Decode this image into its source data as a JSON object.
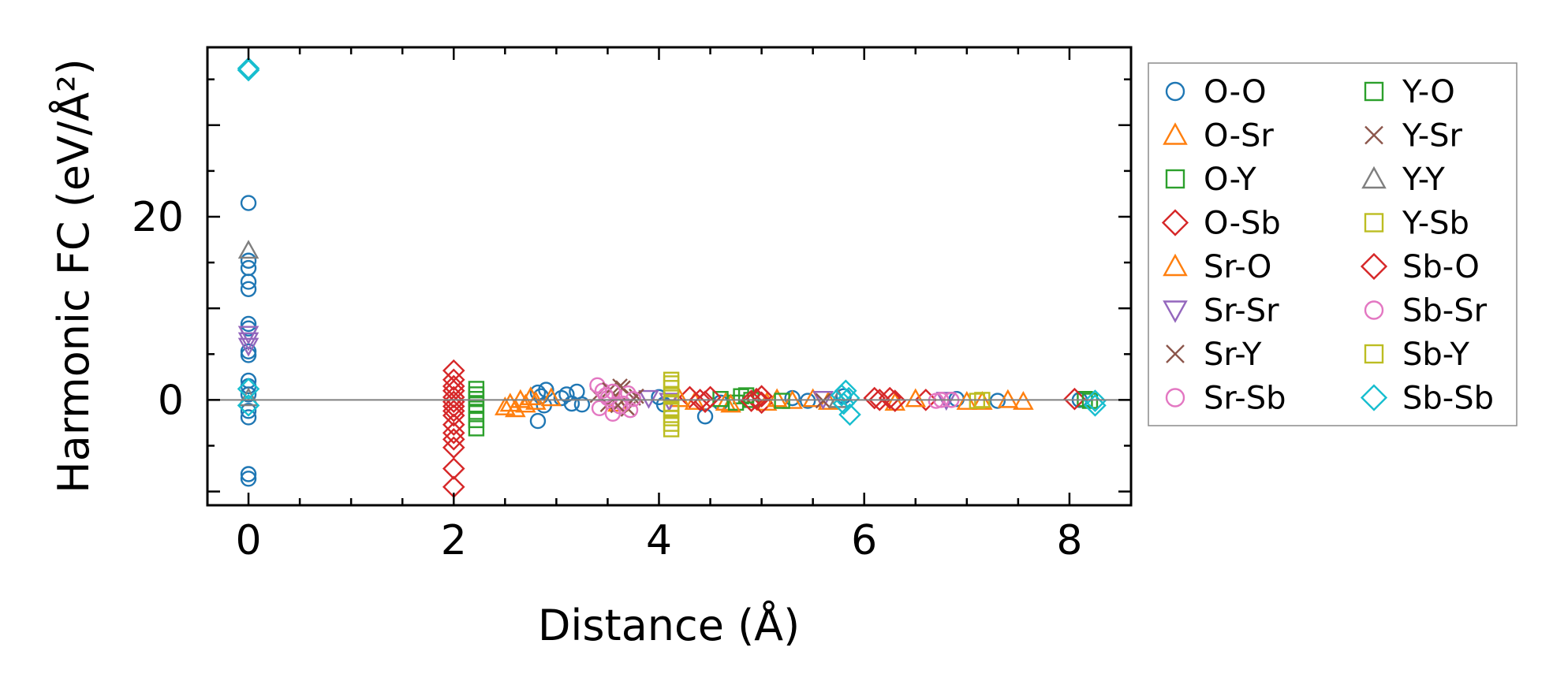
{
  "chart_data": {
    "type": "scatter",
    "title": "",
    "xlabel": "Distance (Å)",
    "ylabel": "Harmonic FC (eV/Å²)",
    "xlim": [
      -0.4,
      8.6
    ],
    "ylim": [
      -11.5,
      38.5
    ],
    "xticks": [
      0,
      2,
      4,
      6,
      8
    ],
    "xtick_labels": [
      "0",
      "2",
      "4",
      "6",
      "8"
    ],
    "yticks": [
      0,
      20
    ],
    "ytick_labels": [
      "0",
      "20"
    ],
    "reference_line_y": 0,
    "legend_position": "outside-right",
    "series": [
      {
        "name": "O-O",
        "marker": "circle",
        "color": "#1f77b4",
        "points": [
          [
            0,
            21.5
          ],
          [
            0,
            15.2
          ],
          [
            0,
            14.4
          ],
          [
            0,
            12.9
          ],
          [
            0,
            12.1
          ],
          [
            0,
            8.3
          ],
          [
            0,
            7.8
          ],
          [
            0,
            5.3
          ],
          [
            0,
            4.9
          ],
          [
            0,
            2.1
          ],
          [
            0,
            1.5
          ],
          [
            0,
            0.6
          ],
          [
            0,
            -1.2
          ],
          [
            0,
            -1.9
          ],
          [
            0,
            -8.1
          ],
          [
            0,
            -8.6
          ],
          [
            2.82,
            0.8
          ],
          [
            2.85,
            0.4
          ],
          [
            2.88,
            -0.6
          ],
          [
            2.82,
            -2.3
          ],
          [
            2.9,
            1.1
          ],
          [
            3.1,
            0.6
          ],
          [
            3.15,
            -0.4
          ],
          [
            3.2,
            0.9
          ],
          [
            3.25,
            -0.5
          ],
          [
            3.05,
            0.2
          ],
          [
            4.0,
            0.3
          ],
          [
            4.05,
            -0.5
          ],
          [
            4.45,
            -1.8
          ],
          [
            4.6,
            -0.3
          ],
          [
            5.3,
            0.2
          ],
          [
            5.45,
            -0.1
          ],
          [
            5.8,
            0.4
          ],
          [
            6.9,
            0.1
          ],
          [
            7.3,
            -0.1
          ],
          [
            8.1,
            0.0
          ]
        ]
      },
      {
        "name": "O-Sr",
        "marker": "triangle-up",
        "color": "#ff7f0e",
        "points": [
          [
            2.55,
            -0.4
          ],
          [
            2.6,
            -1.0
          ],
          [
            2.7,
            -0.5
          ],
          [
            2.75,
            0.3
          ],
          [
            2.95,
            0.2
          ],
          [
            3.6,
            -0.4
          ],
          [
            4.35,
            -0.2
          ],
          [
            4.65,
            -0.3
          ],
          [
            5.05,
            -0.3
          ],
          [
            5.3,
            -0.1
          ],
          [
            5.5,
            0.1
          ],
          [
            6.3,
            -0.3
          ],
          [
            7.0,
            -0.2
          ],
          [
            7.4,
            0.0
          ],
          [
            7.55,
            -0.2
          ]
        ]
      },
      {
        "name": "O-Y",
        "marker": "square",
        "color": "#2ca02c",
        "points": [
          [
            2.22,
            1.2
          ],
          [
            2.22,
            0.6
          ],
          [
            2.22,
            0.1
          ],
          [
            2.22,
            -0.5
          ],
          [
            2.22,
            -1.3
          ],
          [
            2.22,
            -2.2
          ],
          [
            2.22,
            -3.1
          ],
          [
            4.8,
            0.4
          ],
          [
            4.9,
            0.0
          ],
          [
            4.75,
            -0.3
          ],
          [
            8.15,
            0.1
          ]
        ]
      },
      {
        "name": "O-Sb",
        "marker": "diamond",
        "color": "#d62728",
        "points": [
          [
            2.0,
            3.2
          ],
          [
            2.0,
            2.2
          ],
          [
            2.0,
            1.0
          ],
          [
            2.0,
            0.3
          ],
          [
            2.0,
            -0.7
          ],
          [
            2.0,
            -1.7
          ],
          [
            2.0,
            -2.7
          ],
          [
            2.0,
            -3.6
          ],
          [
            2.0,
            -5.2
          ],
          [
            2.0,
            -7.5
          ],
          [
            2.0,
            -9.5
          ],
          [
            4.3,
            0.3
          ],
          [
            4.45,
            -0.2
          ],
          [
            4.95,
            0.1
          ],
          [
            5.0,
            -0.3
          ],
          [
            6.1,
            0.2
          ],
          [
            6.3,
            -0.1
          ],
          [
            6.6,
            0.0
          ],
          [
            8.05,
            0.1
          ]
        ]
      },
      {
        "name": "Sr-O",
        "marker": "triangle-up",
        "color": "#ff7f0e",
        "points": [
          [
            2.5,
            -0.8
          ],
          [
            2.65,
            0.0
          ],
          [
            2.8,
            -0.2
          ],
          [
            4.2,
            0.1
          ],
          [
            4.7,
            -0.5
          ],
          [
            5.15,
            0.1
          ],
          [
            5.65,
            -0.2
          ],
          [
            6.5,
            0.1
          ],
          [
            7.15,
            -0.2
          ]
        ]
      },
      {
        "name": "Sr-Sr",
        "marker": "triangle-down",
        "color": "#9467bd",
        "points": [
          [
            0,
            7.2
          ],
          [
            0,
            6.5
          ],
          [
            0,
            5.9
          ],
          [
            3.9,
            0.2
          ],
          [
            4.1,
            -0.1
          ],
          [
            5.6,
            0.1
          ],
          [
            6.8,
            0.0
          ]
        ]
      },
      {
        "name": "Sr-Y",
        "marker": "x",
        "color": "#8c564b",
        "points": [
          [
            3.4,
            0.5
          ],
          [
            3.5,
            -0.5
          ],
          [
            3.65,
            1.3
          ],
          [
            3.7,
            -1.0
          ],
          [
            3.75,
            0.2
          ],
          [
            5.6,
            -0.1
          ]
        ]
      },
      {
        "name": "Sr-Sb",
        "marker": "circle",
        "color": "#e377c2",
        "points": [
          [
            3.4,
            1.6
          ],
          [
            3.45,
            1.0
          ],
          [
            3.5,
            0.2
          ],
          [
            3.42,
            -0.9
          ],
          [
            3.55,
            -1.5
          ],
          [
            3.65,
            -0.4
          ],
          [
            3.7,
            0.7
          ],
          [
            3.72,
            -1.1
          ],
          [
            6.7,
            -0.1
          ],
          [
            6.85,
            0.0
          ]
        ]
      },
      {
        "name": "Y-O",
        "marker": "square",
        "color": "#2ca02c",
        "points": [
          [
            4.6,
            0.1
          ],
          [
            4.85,
            0.5
          ],
          [
            5.2,
            -0.1
          ],
          [
            8.2,
            -0.1
          ]
        ]
      },
      {
        "name": "Y-Sr",
        "marker": "x",
        "color": "#8c564b",
        "points": [
          [
            3.52,
            1.1
          ],
          [
            3.6,
            -0.6
          ],
          [
            3.78,
            0.4
          ],
          [
            3.62,
            1.5
          ]
        ]
      },
      {
        "name": "Y-Y",
        "marker": "triangle-up",
        "color": "#7f7f7f",
        "points": [
          [
            0,
            16.3
          ],
          [
            0,
            0.2
          ],
          [
            5.75,
            0.0
          ]
        ]
      },
      {
        "name": "Y-Sb",
        "marker": "square",
        "color": "#bcbd22",
        "points": [
          [
            4.12,
            2.2
          ],
          [
            4.12,
            1.3
          ],
          [
            4.12,
            0.5
          ],
          [
            4.12,
            -0.4
          ],
          [
            4.12,
            -1.2
          ],
          [
            4.12,
            -2.0
          ],
          [
            4.12,
            -3.2
          ],
          [
            7.1,
            -0.1
          ]
        ]
      },
      {
        "name": "Sb-O",
        "marker": "diamond",
        "color": "#d62728",
        "points": [
          [
            2.0,
            1.5
          ],
          [
            2.0,
            -0.2
          ],
          [
            2.0,
            -1.2
          ],
          [
            2.0,
            -4.3
          ],
          [
            4.4,
            0.0
          ],
          [
            4.5,
            0.3
          ],
          [
            4.9,
            -0.1
          ],
          [
            5.0,
            0.4
          ],
          [
            6.15,
            0.0
          ],
          [
            6.25,
            0.2
          ]
        ]
      },
      {
        "name": "Sb-Sr",
        "marker": "circle",
        "color": "#e377c2",
        "points": [
          [
            3.48,
            0.5
          ],
          [
            3.55,
            0.9
          ],
          [
            3.62,
            -0.7
          ],
          [
            3.75,
            0.1
          ],
          [
            6.75,
            0.0
          ]
        ]
      },
      {
        "name": "Sb-Y",
        "marker": "square",
        "color": "#bcbd22",
        "points": [
          [
            4.12,
            1.8
          ],
          [
            4.12,
            -0.9
          ],
          [
            4.12,
            -2.6
          ],
          [
            7.15,
            0.0
          ]
        ]
      },
      {
        "name": "Sb-Sb",
        "marker": "diamond",
        "color": "#17becf",
        "points": [
          [
            0,
            36.2
          ],
          [
            0,
            36.0
          ],
          [
            0,
            1.2
          ],
          [
            0,
            -0.6
          ],
          [
            5.82,
            1.0
          ],
          [
            5.85,
            0.2
          ],
          [
            5.8,
            -0.4
          ],
          [
            5.86,
            -1.6
          ],
          [
            5.78,
            0.5
          ],
          [
            8.25,
            -0.1
          ],
          [
            8.25,
            -0.6
          ]
        ]
      }
    ]
  }
}
